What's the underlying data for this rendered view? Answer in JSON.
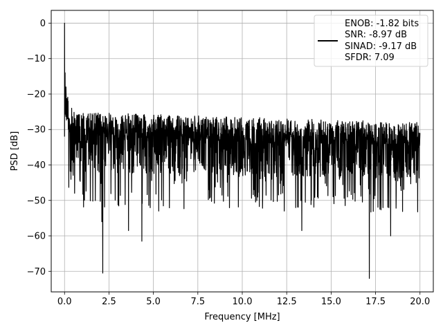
{
  "chart_data": {
    "type": "line",
    "xlabel": "Frequency [MHz]",
    "ylabel": "PSD [dB]",
    "xlim": [
      -0.75,
      20.75
    ],
    "ylim": [
      -75.8,
      3.6
    ],
    "xticks": [
      0.0,
      2.5,
      5.0,
      7.5,
      10.0,
      12.5,
      15.0,
      17.5,
      20.0
    ],
    "xtick_labels": [
      "0.0",
      "2.5",
      "5.0",
      "7.5",
      "10.0",
      "12.5",
      "15.0",
      "17.5",
      "20.0"
    ],
    "yticks": [
      0,
      -10,
      -20,
      -30,
      -40,
      -50,
      -60,
      -70
    ],
    "ytick_labels": [
      "0",
      "−10",
      "−20",
      "−30",
      "−40",
      "−50",
      "−60",
      "−70"
    ],
    "grid": true,
    "legend_position": "top-right",
    "series": [
      {
        "color": "#000000",
        "x_range": [
          0,
          20
        ],
        "noise_band": {
          "upper_approx": -25,
          "lower_approx": -42,
          "mean_approx": -32
        },
        "x": [
          0.0,
          0.0,
          0.03,
          0.08,
          0.2,
          0.4,
          0.7,
          1.0,
          1.5,
          2.0,
          2.1,
          2.15,
          2.2,
          2.5,
          3.0,
          3.6,
          4.0,
          4.35,
          4.5,
          5.0,
          5.3,
          6.0,
          7.0,
          8.0,
          9.0,
          10.0,
          11.0,
          12.0,
          13.35,
          14.0,
          15.0,
          16.0,
          17.0,
          17.15,
          17.3,
          18.0,
          18.35,
          19.0,
          19.5,
          20.0
        ],
        "values": [
          -32.0,
          0.0,
          -14.0,
          -18.0,
          -22.0,
          -24.0,
          -26.0,
          -27.0,
          -27.5,
          -28.0,
          -56.0,
          -70.5,
          -30.0,
          -29.0,
          -28.5,
          -58.5,
          -29.0,
          -61.5,
          -29.0,
          -29.5,
          -53.0,
          -29.5,
          -30.0,
          -30.0,
          -30.5,
          -30.5,
          -31.0,
          -31.0,
          -58.5,
          -31.0,
          -31.5,
          -31.5,
          -31.5,
          -72.0,
          -31.5,
          -32.0,
          -60.0,
          -32.0,
          -32.0,
          -31.0
        ]
      }
    ],
    "legend": {
      "entries": [
        "ENOB: -1.82 bits",
        "SNR: -8.97 dB",
        "SINAD: -9.17 dB",
        "SFDR: 7.09"
      ]
    }
  }
}
